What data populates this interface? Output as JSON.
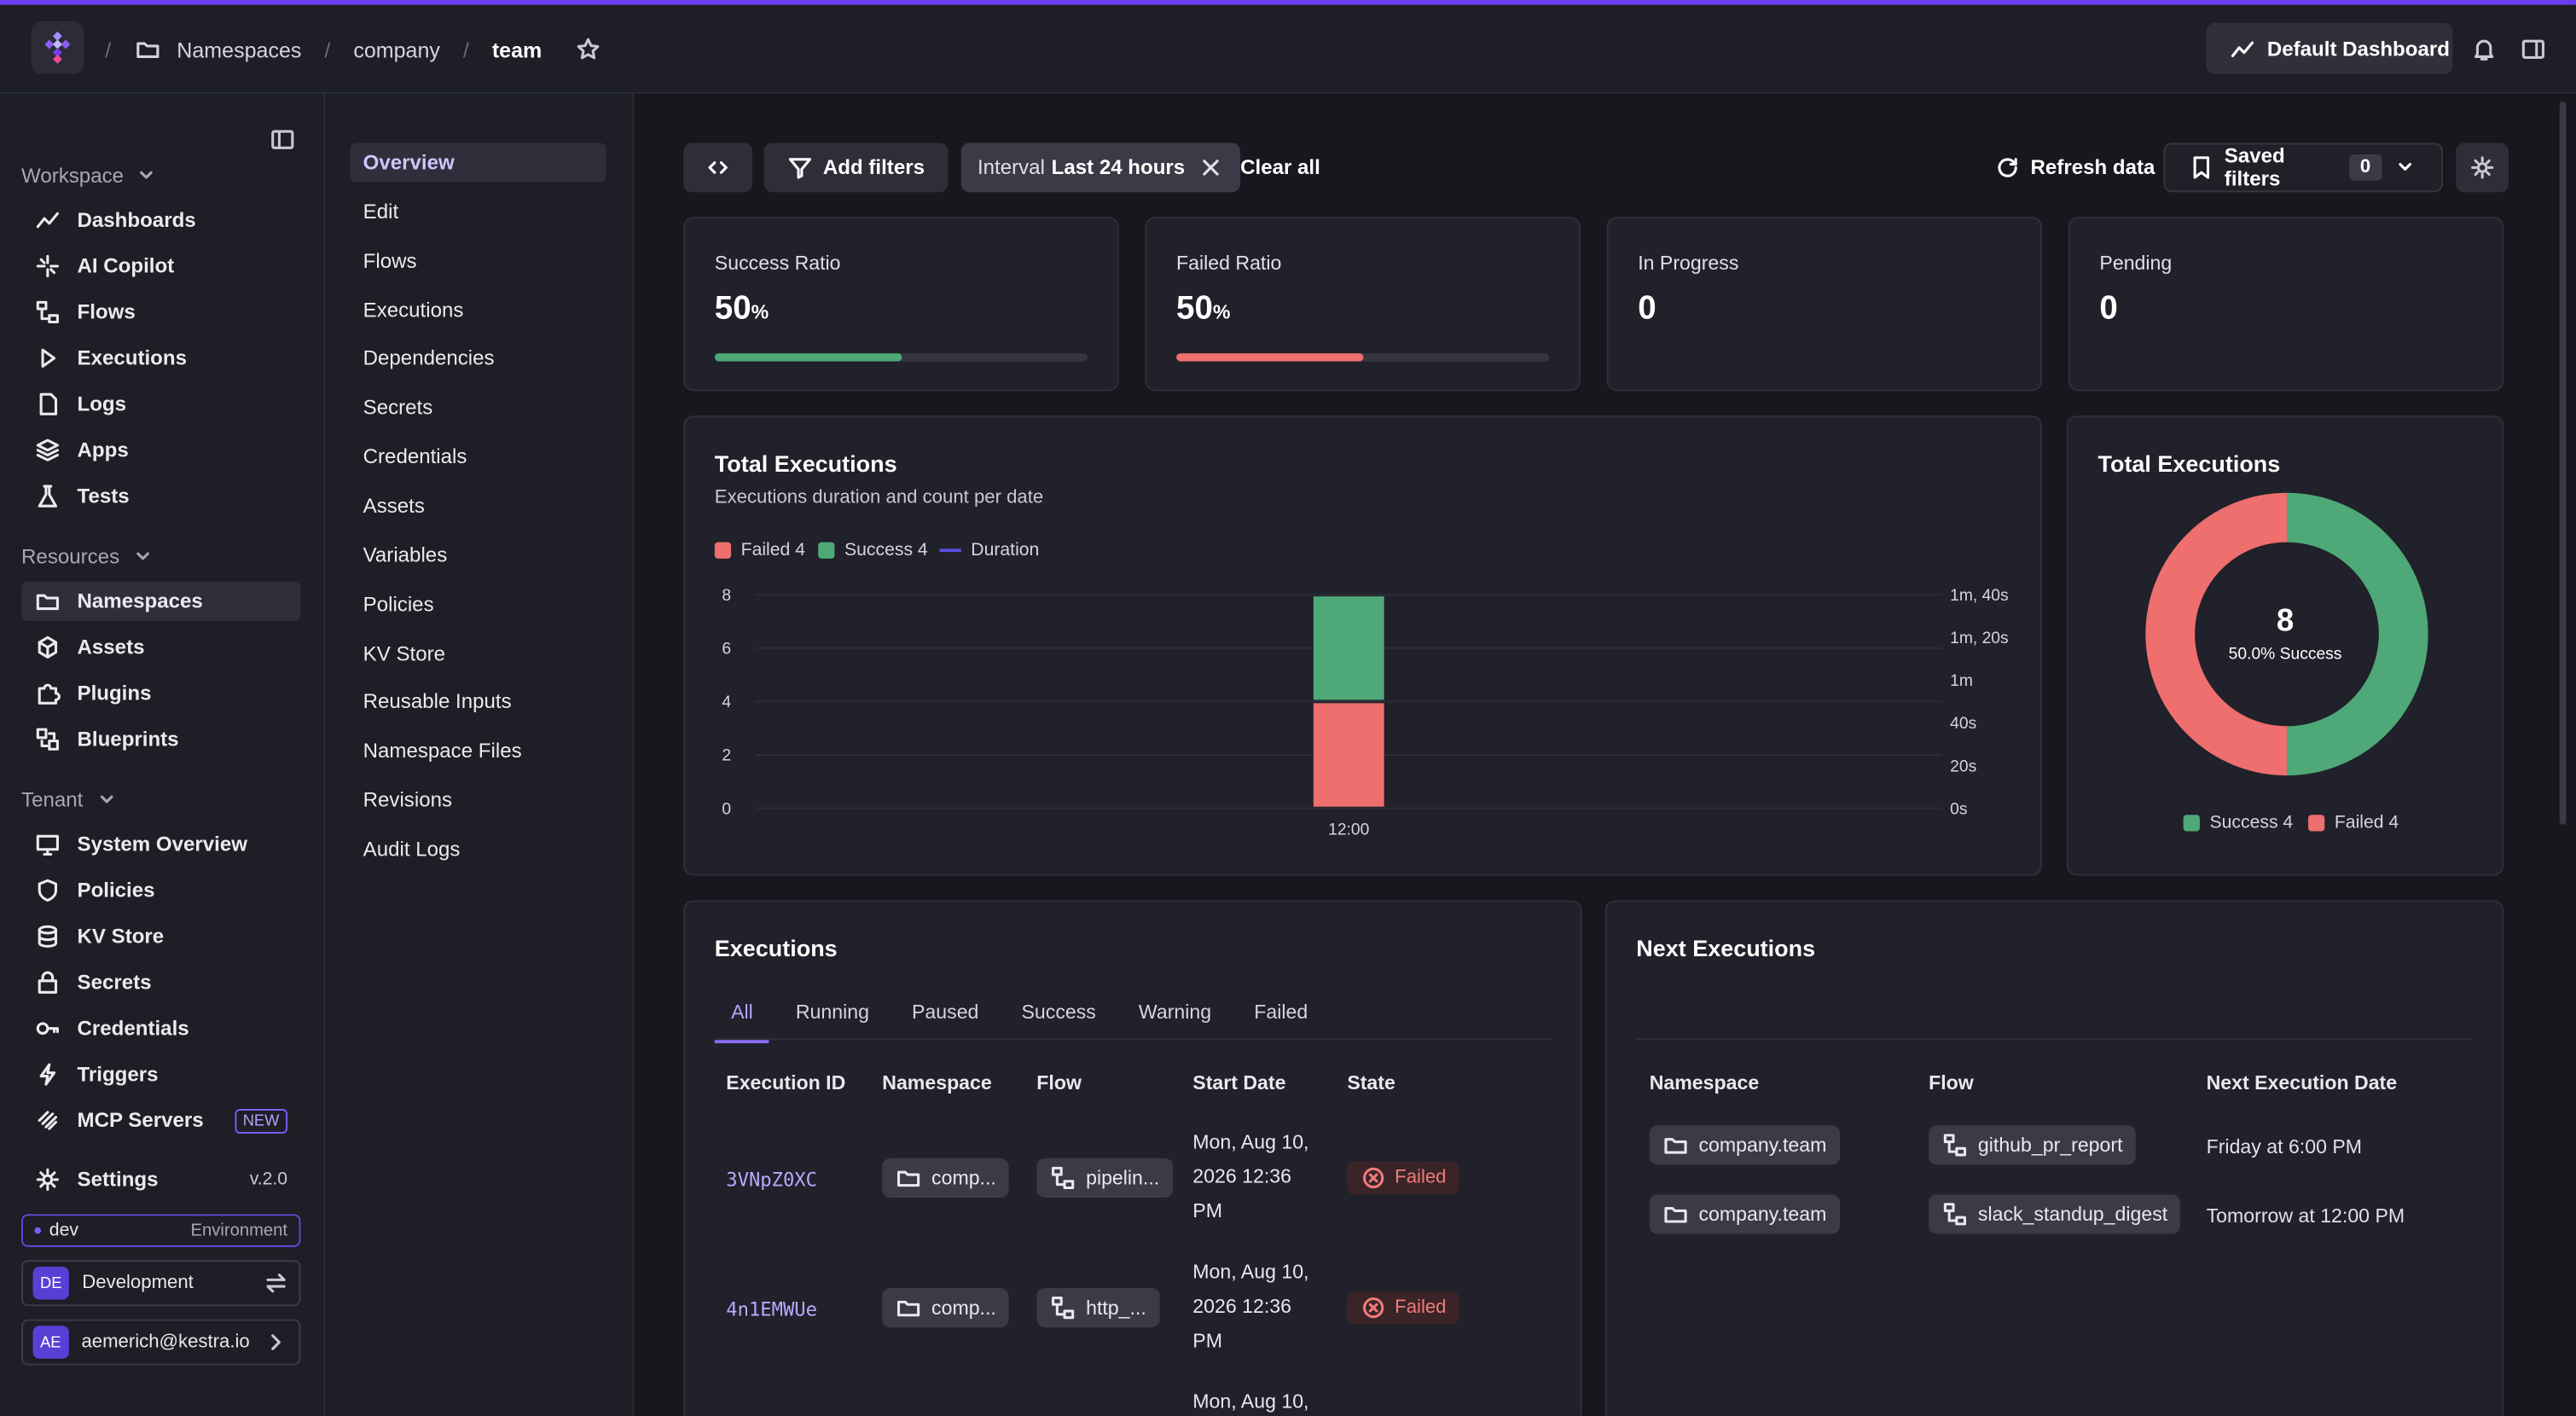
{
  "breadcrumb": {
    "items": [
      "Namespaces",
      "company",
      "team"
    ]
  },
  "header": {
    "dashboard_button": "Default Dashboard"
  },
  "sidebar": {
    "workspace_label": "Workspace",
    "workspace_items": [
      {
        "label": "Dashboards",
        "icon": "chart-line-icon"
      },
      {
        "label": "AI Copilot",
        "icon": "sparkle-icon"
      },
      {
        "label": "Flows",
        "icon": "flow-icon"
      },
      {
        "label": "Executions",
        "icon": "play-icon"
      },
      {
        "label": "Logs",
        "icon": "file-icon"
      },
      {
        "label": "Apps",
        "icon": "layers-icon"
      },
      {
        "label": "Tests",
        "icon": "flask-icon"
      }
    ],
    "resources_label": "Resources",
    "resources_items": [
      {
        "label": "Namespaces",
        "icon": "folder-icon"
      },
      {
        "label": "Assets",
        "icon": "cube-icon"
      },
      {
        "label": "Plugins",
        "icon": "puzzle-icon"
      },
      {
        "label": "Blueprints",
        "icon": "blueprint-icon"
      }
    ],
    "tenant_label": "Tenant",
    "tenant_items": [
      {
        "label": "System Overview",
        "icon": "monitor-icon"
      },
      {
        "label": "Policies",
        "icon": "shield-icon"
      },
      {
        "label": "KV Store",
        "icon": "database-icon"
      },
      {
        "label": "Secrets",
        "icon": "lock-icon"
      },
      {
        "label": "Credentials",
        "icon": "key-icon"
      },
      {
        "label": "Triggers",
        "icon": "bolt-icon"
      },
      {
        "label": "MCP Servers",
        "icon": "mcp-icon",
        "badge": "NEW"
      }
    ],
    "settings_label": "Settings",
    "version": "v.2.0",
    "environment": {
      "value": "dev",
      "label": "Environment"
    },
    "tenant": {
      "initials": "DE",
      "name": "Development"
    },
    "user": {
      "initials": "AE",
      "email": "aemerich@kestra.io"
    }
  },
  "subnav": {
    "items": [
      "Overview",
      "Edit",
      "Flows",
      "Executions",
      "Dependencies",
      "Secrets",
      "Credentials",
      "Assets",
      "Variables",
      "Policies",
      "KV Store",
      "Reusable Inputs",
      "Namespace Files",
      "Revisions",
      "Audit Logs"
    ]
  },
  "filters": {
    "add_filters": "Add filters",
    "interval_key": "Interval",
    "interval_value": "Last 24 hours",
    "clear_all": "Clear all",
    "refresh": "Refresh data",
    "saved_filters": "Saved filters",
    "saved_count": "0"
  },
  "kpis": [
    {
      "label": "Success Ratio",
      "value": "50",
      "unit": "%",
      "ratio": 0.5,
      "color": "#4ea877"
    },
    {
      "label": "Failed Ratio",
      "value": "50",
      "unit": "%",
      "ratio": 0.5,
      "color": "#ef6e6e"
    },
    {
      "label": "In Progress",
      "value": "0",
      "unit": ""
    },
    {
      "label": "Pending",
      "value": "0",
      "unit": ""
    }
  ],
  "chart_data": [
    {
      "type": "bar",
      "title": "Total Executions",
      "subtitle": "Executions duration and count per date",
      "categories": [
        "12:00"
      ],
      "series": [
        {
          "name": "Failed",
          "values": [
            4
          ],
          "color": "#ef6e6e"
        },
        {
          "name": "Success",
          "values": [
            4
          ],
          "color": "#4ea877"
        },
        {
          "name": "Duration",
          "values": [
            0
          ],
          "color": "#5b4ee0"
        }
      ],
      "legend": [
        "Failed 4",
        "Success 4",
        "Duration"
      ],
      "y_ticks": [
        "0",
        "2",
        "4",
        "6",
        "8"
      ],
      "ylim": [
        0,
        8
      ],
      "y2_ticks": [
        "0s",
        "20s",
        "40s",
        "1m",
        "1m, 20s",
        "1m, 40s"
      ],
      "stacked": true
    },
    {
      "type": "pie",
      "title": "Total Executions",
      "categories": [
        "Success",
        "Failed"
      ],
      "values": [
        4,
        4
      ],
      "colors": [
        "#4ea877",
        "#ef6e6e"
      ],
      "center_value": "8",
      "center_label": "50.0% Success",
      "legend": [
        "Success 4",
        "Failed 4"
      ]
    }
  ],
  "executions": {
    "title": "Executions",
    "tabs": [
      "All",
      "Running",
      "Paused",
      "Success",
      "Warning",
      "Failed"
    ],
    "columns": [
      "Execution ID",
      "Namespace",
      "Flow",
      "Start Date",
      "State"
    ],
    "rows": [
      {
        "id": "3VNpZ0XC",
        "namespace": "comp...",
        "flow": "pipelin...",
        "date": [
          "Mon, Aug 10,",
          "2026 12:36",
          "PM"
        ],
        "state": "Failed"
      },
      {
        "id": "4n1EMWUe",
        "namespace": "comp...",
        "flow": "http_...",
        "date": [
          "Mon, Aug 10,",
          "2026 12:36",
          "PM"
        ],
        "state": "Failed"
      },
      {
        "date_partial": "Mon, Aug 10,"
      }
    ]
  },
  "next_executions": {
    "title": "Next Executions",
    "columns": [
      "Namespace",
      "Flow",
      "Next Execution Date"
    ],
    "rows": [
      {
        "namespace": "company.team",
        "flow": "github_pr_report",
        "date": "Friday at 6:00 PM"
      },
      {
        "namespace": "company.team",
        "flow": "slack_standup_digest",
        "date": "Tomorrow at 12:00 PM"
      }
    ]
  }
}
